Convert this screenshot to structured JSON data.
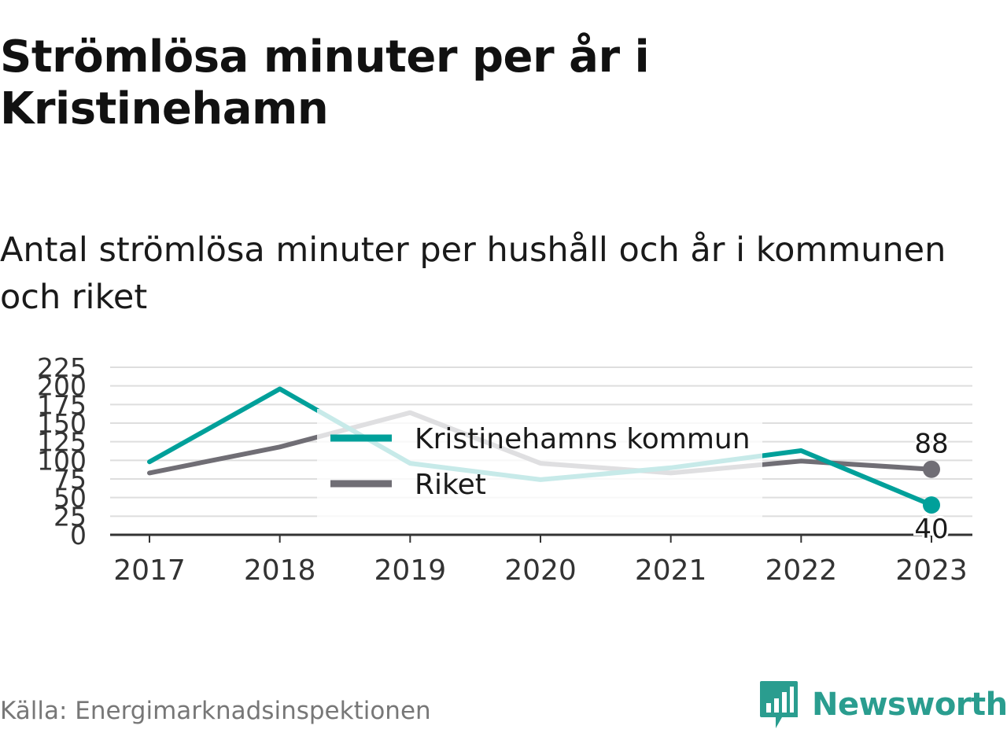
{
  "title": "Strömlösa minuter per år i Kristinehamn",
  "subtitle": "Antal strömlösa minuter per hushåll och år i kommunen och riket",
  "source": "Källa: Energimarknadsinspektionen",
  "brand": {
    "name": "Newsworthy",
    "logo_icon": "newsworthy-bar-chart-logo-icon",
    "color": "#2a9d8f"
  },
  "chart_data": {
    "type": "line",
    "x": [
      "2017",
      "2018",
      "2019",
      "2020",
      "2021",
      "2022",
      "2023"
    ],
    "ylim": [
      0,
      225
    ],
    "yticks": [
      "0",
      "25",
      "50",
      "75",
      "100",
      "125",
      "150",
      "175",
      "200",
      "225"
    ],
    "grid": true,
    "legend_position": "center",
    "series": [
      {
        "name": "Kristinehamns kommun",
        "color": "#00a09a",
        "values": [
          98,
          196,
          96,
          74,
          90,
          113,
          40
        ],
        "end_label": "40"
      },
      {
        "name": "Riket",
        "color": "#706e75",
        "values": [
          83,
          118,
          164,
          96,
          83,
          99,
          88
        ],
        "end_label": "88"
      }
    ]
  }
}
